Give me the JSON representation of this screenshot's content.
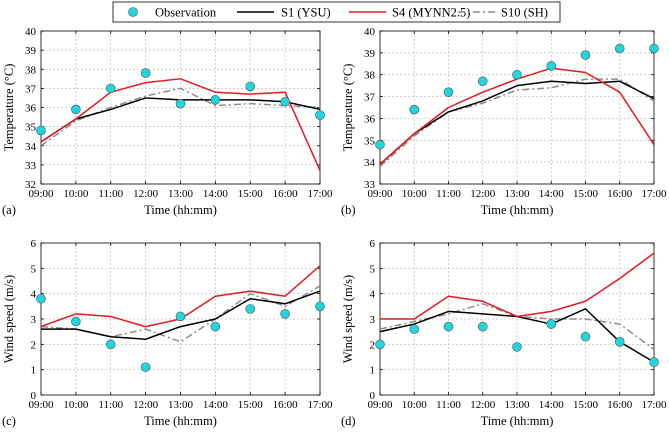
{
  "legend": {
    "items": [
      {
        "label": "Observation",
        "kind": "marker",
        "color": "#1ed6dc"
      },
      {
        "label": "S1 (YSU)",
        "kind": "solid",
        "color": "#000000"
      },
      {
        "label": "S4 (MYNN2.5)",
        "kind": "solid",
        "color": "#e6191e"
      },
      {
        "label": "S10 (SH)",
        "kind": "dashdot",
        "color": "#8c8c8c"
      }
    ]
  },
  "chart_data": [
    {
      "type": "line",
      "panel": "(a)",
      "xlabel": "Time (hh:mm)",
      "ylabel": "Temperature (°C)",
      "categories": [
        "09:00",
        "10:00",
        "11:00",
        "12:00",
        "13:00",
        "14:00",
        "15:00",
        "16:00",
        "17:00"
      ],
      "ylim": [
        32,
        40
      ],
      "yticks": [
        32,
        33,
        34,
        35,
        36,
        37,
        38,
        39,
        40
      ],
      "grid": true,
      "observation": [
        34.8,
        35.9,
        37.0,
        37.8,
        36.2,
        36.4,
        37.1,
        36.3,
        35.6
      ],
      "series": [
        {
          "name": "S1 (YSU)",
          "values": [
            34.2,
            35.4,
            35.9,
            36.5,
            36.4,
            36.4,
            36.4,
            36.3,
            35.9
          ]
        },
        {
          "name": "S4 (MYNN2.5)",
          "values": [
            34.2,
            35.4,
            36.8,
            37.3,
            37.5,
            36.8,
            36.7,
            36.8,
            32.7
          ]
        },
        {
          "name": "S10 (SH)",
          "values": [
            34.0,
            35.3,
            36.0,
            36.6,
            37.0,
            36.1,
            36.2,
            36.1,
            36.0
          ]
        }
      ]
    },
    {
      "type": "line",
      "panel": "(b)",
      "xlabel": "Time (hh:mm)",
      "ylabel": "Temperature (°C)",
      "categories": [
        "09:00",
        "10:00",
        "11:00",
        "12:00",
        "13:00",
        "14:00",
        "15:00",
        "16:00",
        "17:00"
      ],
      "ylim": [
        33,
        40
      ],
      "yticks": [
        33,
        34,
        35,
        36,
        37,
        38,
        39,
        40
      ],
      "grid": true,
      "observation": [
        34.8,
        36.4,
        37.2,
        37.7,
        38.0,
        38.4,
        38.9,
        39.2,
        39.2
      ],
      "series": [
        {
          "name": "S1 (YSU)",
          "values": [
            33.9,
            35.3,
            36.3,
            36.8,
            37.5,
            37.7,
            37.6,
            37.7,
            36.9
          ]
        },
        {
          "name": "S4 (MYNN2.5)",
          "values": [
            33.9,
            35.3,
            36.5,
            37.2,
            37.8,
            38.3,
            38.1,
            37.2,
            34.8
          ]
        },
        {
          "name": "S10 (SH)",
          "values": [
            33.8,
            35.2,
            36.3,
            36.7,
            37.3,
            37.4,
            37.8,
            37.8,
            36.8
          ]
        }
      ]
    },
    {
      "type": "line",
      "panel": "(c)",
      "xlabel": "Time (hh:mm)",
      "ylabel": "Wind speed (m/s)",
      "categories": [
        "09:00",
        "10:00",
        "11:00",
        "12:00",
        "13:00",
        "14:00",
        "15:00",
        "16:00",
        "17:00"
      ],
      "ylim": [
        0,
        6
      ],
      "yticks": [
        0,
        1,
        2,
        3,
        4,
        5,
        6
      ],
      "grid": true,
      "observation": [
        3.8,
        2.9,
        2.0,
        1.1,
        3.1,
        2.7,
        3.4,
        3.2,
        3.5
      ],
      "series": [
        {
          "name": "S1 (YSU)",
          "values": [
            2.6,
            2.6,
            2.3,
            2.2,
            2.7,
            3.0,
            3.8,
            3.6,
            4.1
          ]
        },
        {
          "name": "S4 (MYNN2.5)",
          "values": [
            2.7,
            3.2,
            3.1,
            2.7,
            3.0,
            3.9,
            4.1,
            3.9,
            5.1
          ]
        },
        {
          "name": "S10 (SH)",
          "values": [
            2.7,
            2.6,
            2.3,
            2.6,
            2.1,
            3.0,
            4.0,
            3.5,
            4.3
          ]
        }
      ]
    },
    {
      "type": "line",
      "panel": "(d)",
      "xlabel": "Time (hh:mm)",
      "ylabel": "Wind speed (m/s)",
      "categories": [
        "09:00",
        "10:00",
        "11:00",
        "12:00",
        "13:00",
        "14:00",
        "15:00",
        "16:00",
        "17:00"
      ],
      "ylim": [
        0,
        6
      ],
      "yticks": [
        0,
        1,
        2,
        3,
        4,
        5,
        6
      ],
      "grid": true,
      "observation": [
        2.0,
        2.6,
        2.7,
        2.7,
        1.9,
        2.8,
        2.3,
        2.1,
        1.3
      ],
      "series": [
        {
          "name": "S1 (YSU)",
          "values": [
            2.5,
            2.8,
            3.3,
            3.2,
            3.1,
            2.8,
            3.4,
            2.1,
            1.3
          ]
        },
        {
          "name": "S4 (MYNN2.5)",
          "values": [
            3.0,
            3.0,
            3.9,
            3.7,
            3.1,
            3.3,
            3.7,
            4.6,
            5.6
          ]
        },
        {
          "name": "S10 (SH)",
          "values": [
            2.6,
            2.9,
            3.2,
            3.6,
            3.1,
            3.0,
            3.0,
            2.8,
            1.8
          ]
        }
      ]
    }
  ]
}
